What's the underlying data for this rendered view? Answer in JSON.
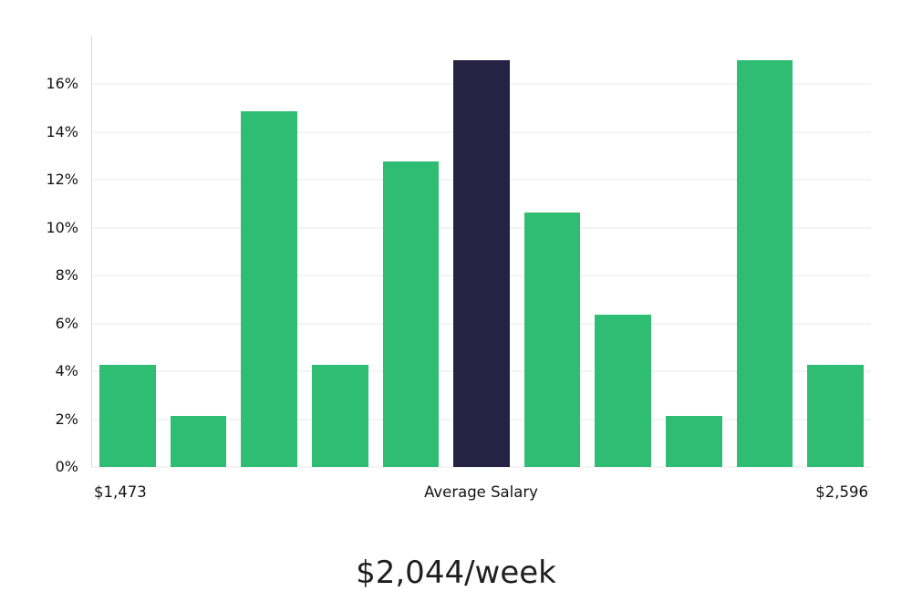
{
  "chart_data": {
    "type": "bar",
    "title": "",
    "xlabel": "",
    "ylabel": "",
    "grid": "horizontal",
    "legend": "none",
    "values": [
      4.26,
      2.13,
      14.89,
      4.26,
      12.77,
      17.02,
      10.64,
      6.38,
      2.13,
      17.02,
      4.26
    ],
    "highlight_index": 5,
    "y_tick_values": [
      0,
      2,
      4,
      6,
      8,
      10,
      12,
      14,
      16
    ],
    "y_tick_labels": [
      "0%",
      "2%",
      "4%",
      "6%",
      "8%",
      "10%",
      "12%",
      "14%",
      "16%"
    ],
    "ylim": [
      0,
      18
    ],
    "x_axis_labels": {
      "left": "$1,473",
      "center": "Average Salary",
      "right": "$2,596"
    },
    "colors": {
      "bar": "#2EBD72",
      "highlight": "#252244",
      "grid": "#E8E8E8",
      "axis": "#D8D8D8"
    }
  },
  "footer": {
    "average_label": "$2,044/week"
  }
}
